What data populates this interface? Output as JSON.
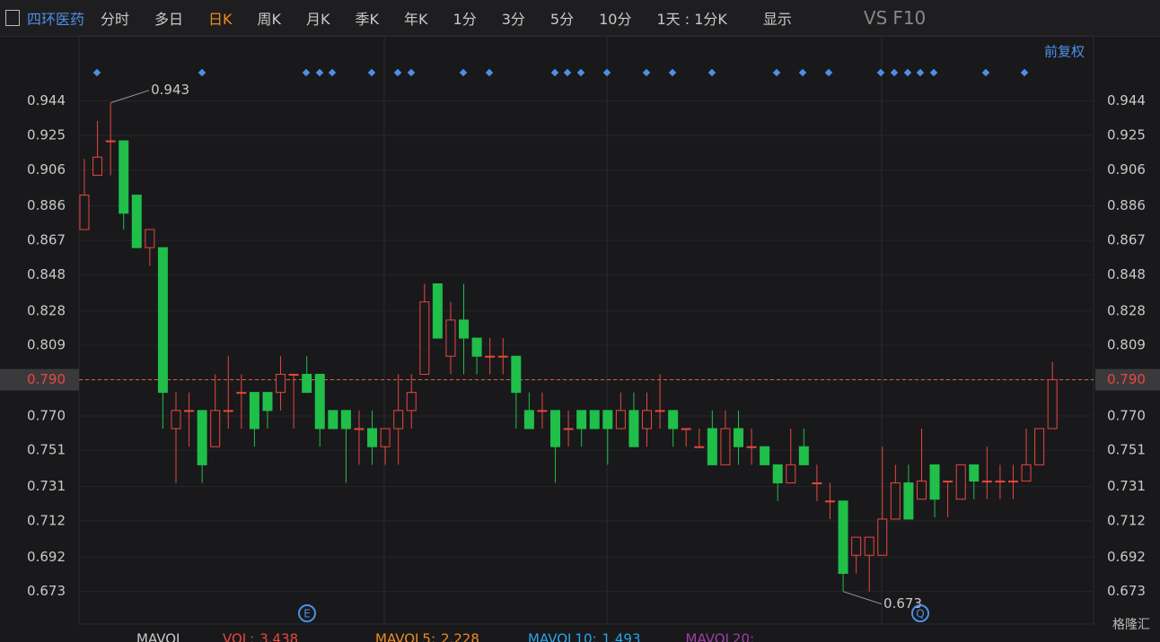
{
  "toolbar": {
    "stock": "四环医药",
    "tabs": [
      "分时",
      "多日",
      "日K",
      "周K",
      "月K",
      "季K",
      "年K",
      "1分",
      "3分",
      "5分",
      "10分"
    ],
    "active_tab": 2,
    "period": "1天 : 1分K",
    "display": "显示",
    "vs": "VS",
    "f10": "F10"
  },
  "adjust": "前复权",
  "chart_data": {
    "type": "candlestick",
    "ylim": [
      0.655,
      0.98
    ],
    "yticks": [
      0.944,
      0.925,
      0.906,
      0.886,
      0.867,
      0.848,
      0.828,
      0.809,
      {
        "value": 0.79,
        "label": "0.790"
      },
      {
        "value": 0.77,
        "label": "0.770"
      },
      0.751,
      0.731,
      0.712,
      0.692,
      0.673
    ],
    "up_color": "#e8473f",
    "down_color": "#1fbf4a",
    "grid": true,
    "open": [
      0.873,
      0.903,
      0.922,
      0.922,
      0.892,
      0.863,
      0.863,
      0.763,
      0.773,
      0.773,
      0.753,
      0.773,
      0.783,
      0.783,
      0.783,
      0.783,
      0.793,
      0.793,
      0.793,
      0.773,
      0.773,
      0.763,
      0.763,
      0.753,
      0.763,
      0.773,
      0.793,
      0.843,
      0.803,
      0.823,
      0.813,
      0.803,
      0.803,
      0.803,
      0.773,
      0.773,
      0.773,
      0.763,
      0.773,
      0.773,
      0.773,
      0.763,
      0.773,
      0.763,
      0.773,
      0.773,
      0.763,
      0.753,
      0.763,
      0.743,
      0.763,
      0.753,
      0.753,
      0.743,
      0.733,
      0.753,
      0.733,
      0.723,
      0.723,
      0.693,
      0.693,
      0.693,
      0.713,
      0.733,
      0.724,
      0.743,
      0.734,
      0.724,
      0.743,
      0.734,
      0.734,
      0.734,
      0.734,
      0.743,
      0.763
    ],
    "high": [
      0.912,
      0.933,
      0.943,
      0.922,
      0.892,
      0.873,
      0.863,
      0.783,
      0.783,
      0.773,
      0.793,
      0.803,
      0.793,
      0.783,
      0.783,
      0.803,
      0.793,
      0.803,
      0.793,
      0.773,
      0.773,
      0.773,
      0.773,
      0.763,
      0.793,
      0.793,
      0.843,
      0.843,
      0.833,
      0.843,
      0.813,
      0.813,
      0.813,
      0.803,
      0.783,
      0.783,
      0.773,
      0.773,
      0.773,
      0.773,
      0.773,
      0.783,
      0.783,
      0.783,
      0.793,
      0.773,
      0.763,
      0.763,
      0.773,
      0.773,
      0.773,
      0.763,
      0.753,
      0.743,
      0.763,
      0.763,
      0.743,
      0.733,
      0.723,
      0.703,
      0.703,
      0.753,
      0.743,
      0.743,
      0.763,
      0.743,
      0.734,
      0.743,
      0.743,
      0.753,
      0.743,
      0.743,
      0.763,
      0.763,
      0.8
    ],
    "low": [
      0.873,
      0.903,
      0.903,
      0.873,
      0.863,
      0.853,
      0.763,
      0.733,
      0.753,
      0.733,
      0.753,
      0.763,
      0.763,
      0.753,
      0.763,
      0.773,
      0.763,
      0.783,
      0.753,
      0.763,
      0.733,
      0.743,
      0.743,
      0.743,
      0.743,
      0.763,
      0.793,
      0.813,
      0.793,
      0.793,
      0.793,
      0.793,
      0.793,
      0.763,
      0.763,
      0.763,
      0.733,
      0.753,
      0.753,
      0.763,
      0.743,
      0.763,
      0.753,
      0.753,
      0.763,
      0.753,
      0.753,
      0.753,
      0.743,
      0.743,
      0.743,
      0.743,
      0.743,
      0.723,
      0.733,
      0.743,
      0.723,
      0.713,
      0.673,
      0.683,
      0.673,
      0.693,
      0.713,
      0.713,
      0.724,
      0.714,
      0.714,
      0.724,
      0.724,
      0.724,
      0.724,
      0.724,
      0.734,
      0.743,
      0.763
    ],
    "close": [
      0.892,
      0.913,
      0.922,
      0.882,
      0.863,
      0.873,
      0.783,
      0.773,
      0.773,
      0.743,
      0.773,
      0.773,
      0.783,
      0.763,
      0.773,
      0.793,
      0.793,
      0.783,
      0.763,
      0.763,
      0.763,
      0.763,
      0.753,
      0.763,
      0.773,
      0.783,
      0.833,
      0.813,
      0.823,
      0.813,
      0.803,
      0.803,
      0.803,
      0.783,
      0.763,
      0.773,
      0.753,
      0.763,
      0.763,
      0.763,
      0.763,
      0.773,
      0.753,
      0.773,
      0.773,
      0.763,
      0.763,
      0.753,
      0.743,
      0.763,
      0.753,
      0.753,
      0.743,
      0.733,
      0.743,
      0.743,
      0.733,
      0.723,
      0.683,
      0.703,
      0.703,
      0.713,
      0.733,
      0.713,
      0.734,
      0.724,
      0.734,
      0.743,
      0.734,
      0.734,
      0.734,
      0.734,
      0.743,
      0.763,
      0.79
    ],
    "annotations": [
      0.943,
      0.673
    ]
  },
  "current_price": {
    "value": 0.79,
    "label": "0.790"
  },
  "event_markers": [
    "E",
    "Q"
  ],
  "indicator": {
    "settings": "MAVOL",
    "items": [
      {
        "name": "VOL:",
        "value": 3.438,
        "color": "#e8473f"
      },
      {
        "name": "MAVOL5:",
        "value": 2.228,
        "color": "#f08a24"
      },
      {
        "name": "MAVOL10:",
        "value": 1.493,
        "color": "#2aa4e8"
      },
      {
        "name": "MAVOL20:",
        "color": "#9b3fa8"
      }
    ]
  },
  "watermark": "格隆汇"
}
